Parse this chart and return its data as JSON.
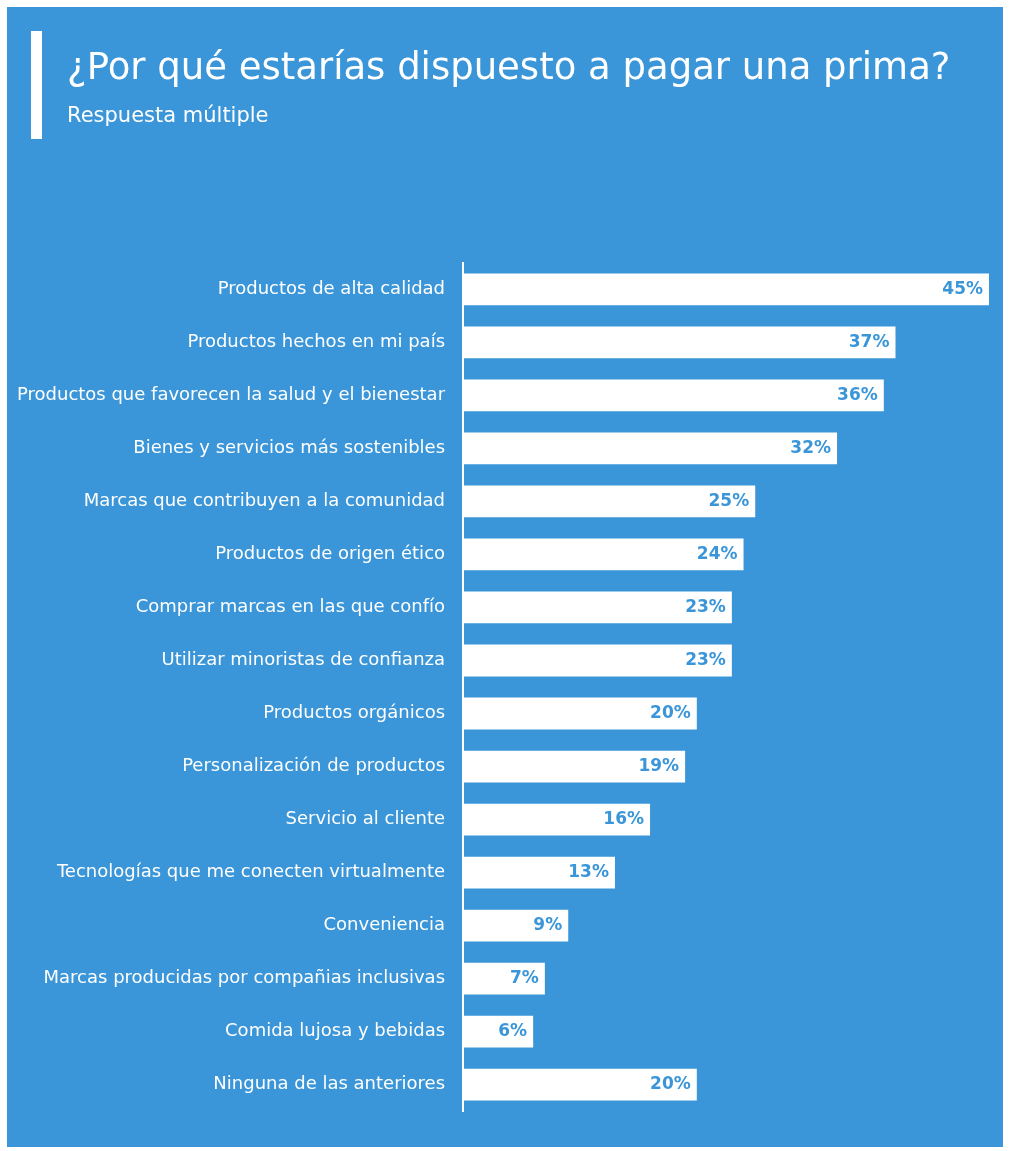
{
  "chart_data": {
    "type": "bar",
    "orientation": "horizontal",
    "title": "¿Por qué estarías dispuesto a pagar una prima?",
    "subtitle": "Respuesta múltiple",
    "categories": [
      "Productos de alta calidad",
      "Productos hechos en mi país",
      "Productos que favorecen la salud y el bienestar",
      "Bienes y servicios más sostenibles",
      "Marcas que contribuyen a la comunidad",
      "Productos de origen ético",
      "Comprar marcas en las que confío",
      "Utilizar minoristas de confianza",
      "Productos orgánicos",
      "Personalización de productos",
      "Servicio al cliente",
      "Tecnologías que me conecten virtualmente",
      "Conveniencia",
      "Marcas producidas por compañias inclusivas",
      "Comida lujosa y bebidas",
      "Ninguna de las anteriores"
    ],
    "values": [
      45,
      37,
      36,
      32,
      25,
      24,
      23,
      23,
      20,
      19,
      16,
      13,
      9,
      7,
      6,
      20
    ],
    "value_labels": [
      "45%",
      "37%",
      "36%",
      "32%",
      "25%",
      "24%",
      "23%",
      "23%",
      "20%",
      "19%",
      "16%",
      "13%",
      "9%",
      "7%",
      "6%",
      "20%"
    ],
    "color": "#ffffff",
    "tick_labels": "y",
    "grid": false,
    "legend": false
  }
}
